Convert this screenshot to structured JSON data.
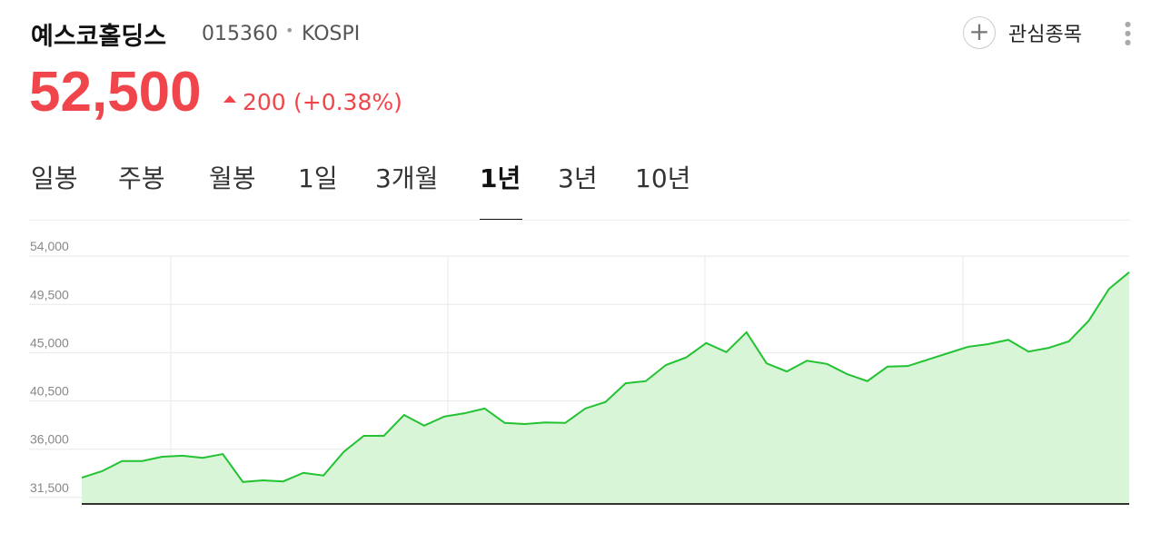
{
  "header": {
    "name": "예스코홀딩스",
    "code": "015360",
    "market": "KOSPI",
    "price": "52,500",
    "change": "200",
    "change_pct": "(+0.38%)",
    "watch": "관심종목"
  },
  "tabs": {
    "items": [
      "일봉",
      "주봉",
      "월봉",
      "1일",
      "3개월",
      "1년",
      "3년",
      "10년"
    ],
    "active": 5
  },
  "chart_data": {
    "type": "area",
    "color": "#22c233",
    "fill": "#d8f5d8",
    "grid": true,
    "ylim": [
      30900,
      55700
    ],
    "yticks": [
      {
        "value": 31500,
        "label": "31,500"
      },
      {
        "value": 36000,
        "label": "36,000"
      },
      {
        "value": 40500,
        "label": "40,500"
      },
      {
        "value": 45000,
        "label": "45,000"
      },
      {
        "value": 49500,
        "label": "49,500"
      },
      {
        "value": 54000,
        "label": "54,000"
      }
    ],
    "values": [
      33350,
      33950,
      34900,
      34900,
      35300,
      35400,
      35200,
      35550,
      32950,
      33100,
      33000,
      33800,
      33550,
      35750,
      37250,
      37250,
      39200,
      38200,
      39050,
      39350,
      39800,
      38450,
      38350,
      38500,
      38450,
      39800,
      40400,
      42150,
      42350,
      43850,
      44550,
      45900,
      45050,
      46900,
      44000,
      43250,
      44250,
      43950,
      43000,
      42350,
      43700,
      43750,
      44350,
      44950,
      45550,
      45800,
      46200,
      45100,
      45450,
      46050,
      48000,
      50950,
      52500
    ]
  }
}
